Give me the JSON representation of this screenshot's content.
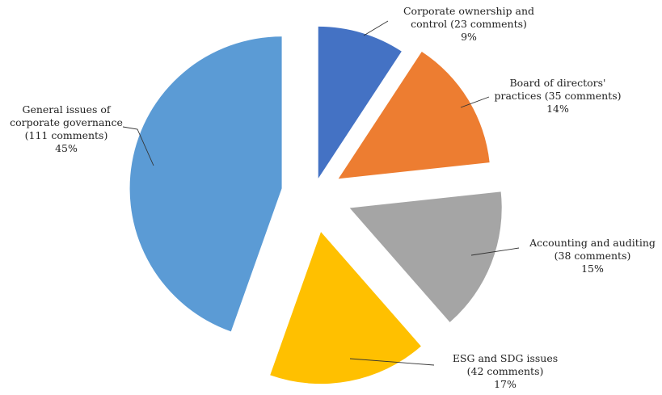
{
  "chart_data": {
    "type": "pie",
    "title": "",
    "exploded": true,
    "legend": "none",
    "slices": [
      {
        "name": "Corporate ownership and control",
        "value": 23,
        "percent": 9,
        "color": "#4472C4",
        "label_lines": [
          "Corporate ownership and",
          "control (23 comments)",
          "9%"
        ]
      },
      {
        "name": "Board of directors' practices",
        "value": 35,
        "percent": 14,
        "color": "#ED7D31",
        "label_lines": [
          "Board of directors'",
          "practices (35 comments)",
          "14%"
        ]
      },
      {
        "name": "Accounting and auditing",
        "value": 38,
        "percent": 15,
        "color": "#A5A5A5",
        "label_lines": [
          "Accounting and auditing",
          "(38 comments)",
          "15%"
        ]
      },
      {
        "name": "ESG and SDG issues",
        "value": 42,
        "percent": 17,
        "color": "#FFC000",
        "label_lines": [
          "ESG and SDG issues",
          "(42 comments)",
          "17%"
        ]
      },
      {
        "name": "General issues of corporate governance",
        "value": 111,
        "percent": 45,
        "color": "#5B9BD5",
        "label_lines": [
          "General issues of",
          "corporate governance",
          "(111 comments)",
          "45%"
        ]
      }
    ]
  }
}
